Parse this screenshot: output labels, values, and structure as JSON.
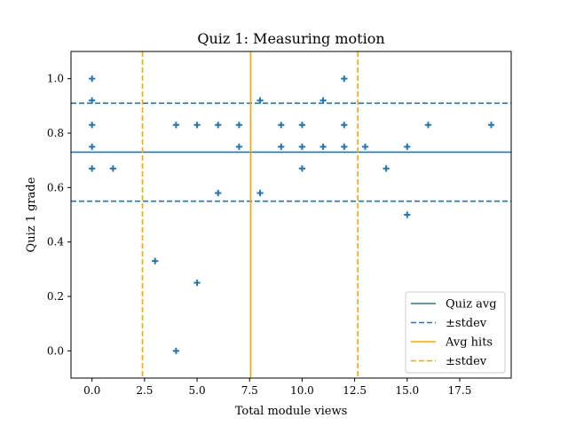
{
  "chart_data": {
    "type": "scatter",
    "title": "Quiz 1: Measuring motion",
    "xlabel": "Total module views",
    "ylabel": "Quiz 1 grade",
    "xlim": [
      -1,
      19.95
    ],
    "ylim": [
      -0.1,
      1.1
    ],
    "xticks": [
      0.0,
      2.5,
      5.0,
      7.5,
      10.0,
      12.5,
      15.0,
      17.5
    ],
    "xtick_labels": [
      "0.0",
      "2.5",
      "5.0",
      "7.5",
      "10.0",
      "12.5",
      "15.0",
      "17.5"
    ],
    "yticks": [
      0.0,
      0.2,
      0.4,
      0.6,
      0.8,
      1.0
    ],
    "ytick_labels": [
      "0.0",
      "0.2",
      "0.4",
      "0.6",
      "0.8",
      "1.0"
    ],
    "grid": false,
    "legend_position": "lower-right",
    "marker": "+",
    "colors": {
      "quiz": "#1f77b4",
      "hits": "#ffa500"
    },
    "points": [
      {
        "x": 0,
        "y": 1.0
      },
      {
        "x": 0,
        "y": 0.92
      },
      {
        "x": 0,
        "y": 0.83
      },
      {
        "x": 0,
        "y": 0.75
      },
      {
        "x": 0,
        "y": 0.67
      },
      {
        "x": 1,
        "y": 0.67
      },
      {
        "x": 3,
        "y": 0.33
      },
      {
        "x": 4,
        "y": 0.83
      },
      {
        "x": 4,
        "y": 0.0
      },
      {
        "x": 5,
        "y": 0.83
      },
      {
        "x": 5,
        "y": 0.25
      },
      {
        "x": 6,
        "y": 0.83
      },
      {
        "x": 6,
        "y": 0.58
      },
      {
        "x": 7,
        "y": 0.83
      },
      {
        "x": 7,
        "y": 0.75
      },
      {
        "x": 8,
        "y": 0.92
      },
      {
        "x": 8,
        "y": 0.58
      },
      {
        "x": 9,
        "y": 0.83
      },
      {
        "x": 9,
        "y": 0.75
      },
      {
        "x": 10,
        "y": 0.83
      },
      {
        "x": 10,
        "y": 0.75
      },
      {
        "x": 10,
        "y": 0.67
      },
      {
        "x": 11,
        "y": 0.92
      },
      {
        "x": 11,
        "y": 0.75
      },
      {
        "x": 12,
        "y": 1.0
      },
      {
        "x": 12,
        "y": 0.83
      },
      {
        "x": 12,
        "y": 0.75
      },
      {
        "x": 13,
        "y": 0.75
      },
      {
        "x": 14,
        "y": 0.67
      },
      {
        "x": 15,
        "y": 0.75
      },
      {
        "x": 15,
        "y": 0.5
      },
      {
        "x": 16,
        "y": 0.83
      },
      {
        "x": 19,
        "y": 0.83
      }
    ],
    "reference_lines": [
      {
        "orientation": "horizontal",
        "value": 0.73,
        "style": "solid",
        "color": "#1f77b4",
        "legend": "Quiz avg"
      },
      {
        "orientation": "horizontal",
        "value": 0.91,
        "style": "dashed",
        "color": "#1f77b4",
        "legend": "±stdev"
      },
      {
        "orientation": "horizontal",
        "value": 0.55,
        "style": "dashed",
        "color": "#1f77b4"
      },
      {
        "orientation": "vertical",
        "value": 7.55,
        "style": "solid",
        "color": "#ffa500",
        "legend": "Avg hits"
      },
      {
        "orientation": "vertical",
        "value": 2.4,
        "style": "dashed",
        "color": "#ffa500",
        "legend": "±stdev"
      },
      {
        "orientation": "vertical",
        "value": 12.65,
        "style": "dashed",
        "color": "#ffa500"
      }
    ],
    "legend": [
      "Quiz avg",
      "±stdev",
      "Avg hits",
      "±stdev"
    ]
  }
}
